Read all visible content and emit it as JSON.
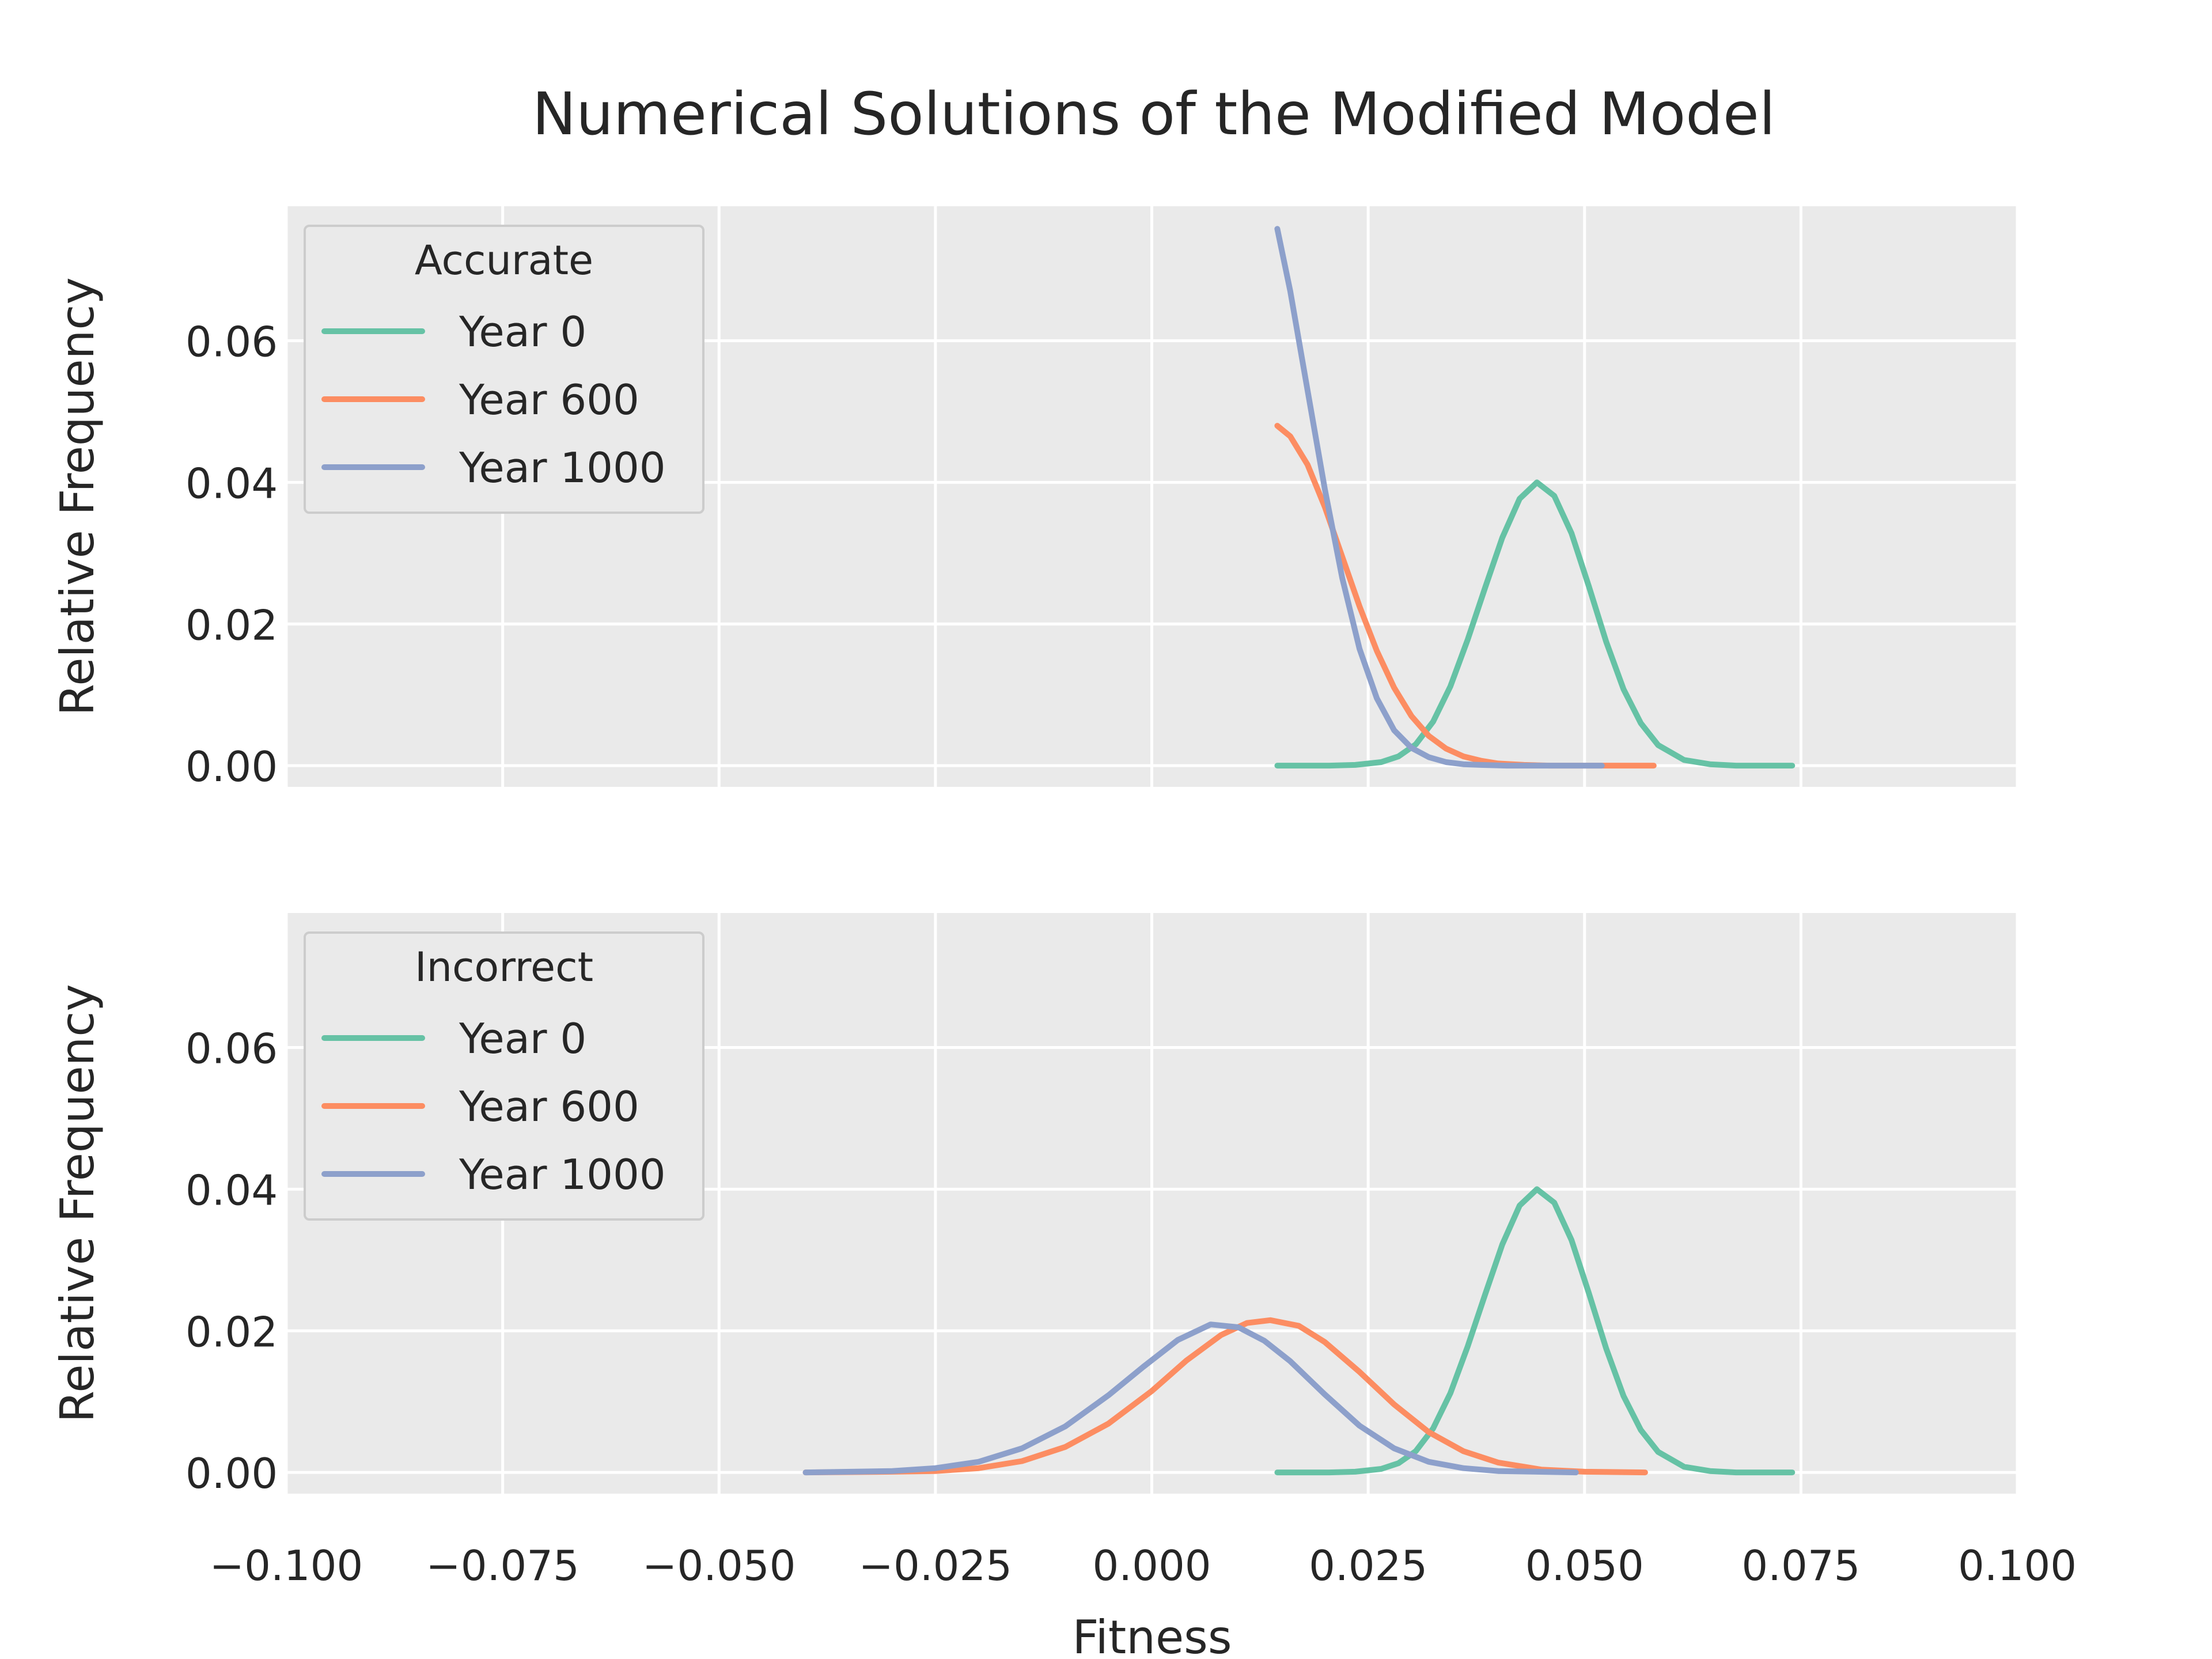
{
  "title": "Numerical Solutions of the Modified Model",
  "colors": {
    "year0": "#66c2a5",
    "year600": "#fc8d62",
    "year1000": "#8da0cb",
    "panel_bg": "#eaeaea",
    "grid": "#ffffff",
    "text": "#262626"
  },
  "chart_data": [
    {
      "type": "line",
      "legend_title": "Accurate",
      "legend_placement": "top-left",
      "xlabel": "",
      "ylabel": "Relative Frequency",
      "xlim": [
        -0.1,
        0.1
      ],
      "ylim": [
        -0.003,
        0.079
      ],
      "yticks": [
        "0.00",
        "0.02",
        "0.04",
        "0.06"
      ],
      "yticks_values": [
        0,
        0.02,
        0.04,
        0.06
      ],
      "grid": true,
      "series": [
        {
          "name": "Year 0",
          "color": "#66c2a5",
          "x": [
            0.0145,
            0.0175,
            0.0205,
            0.0235,
            0.0265,
            0.0285,
            0.0305,
            0.0325,
            0.0345,
            0.0365,
            0.0385,
            0.0405,
            0.0425,
            0.0445,
            0.0465,
            0.0485,
            0.0505,
            0.0525,
            0.0545,
            0.0565,
            0.0585,
            0.0615,
            0.0645,
            0.0675,
            0.0705,
            0.074
          ],
          "y": [
            0.0,
            0.0,
            0.0,
            0.0001,
            0.0005,
            0.0013,
            0.003,
            0.0062,
            0.0112,
            0.0178,
            0.0251,
            0.0322,
            0.0377,
            0.04,
            0.0381,
            0.0328,
            0.0253,
            0.0175,
            0.0108,
            0.006,
            0.0029,
            0.0008,
            0.0002,
            0.0,
            0.0,
            0.0
          ]
        },
        {
          "name": "Year 600",
          "color": "#fc8d62",
          "x": [
            0.0145,
            0.016,
            0.018,
            0.02,
            0.022,
            0.024,
            0.026,
            0.028,
            0.03,
            0.032,
            0.034,
            0.036,
            0.038,
            0.04,
            0.043,
            0.046,
            0.05,
            0.054,
            0.058
          ],
          "y": [
            0.048,
            0.0465,
            0.0425,
            0.0365,
            0.0295,
            0.0225,
            0.0162,
            0.011,
            0.007,
            0.0042,
            0.0024,
            0.0013,
            0.0007,
            0.0003,
            0.0001,
            0.0,
            0.0,
            0.0,
            0.0
          ]
        },
        {
          "name": "Year 1000",
          "color": "#8da0cb",
          "x": [
            0.0145,
            0.016,
            0.018,
            0.02,
            0.022,
            0.024,
            0.026,
            0.028,
            0.03,
            0.032,
            0.034,
            0.036,
            0.038,
            0.041,
            0.044,
            0.048,
            0.052
          ],
          "y": [
            0.0758,
            0.067,
            0.053,
            0.039,
            0.0265,
            0.0165,
            0.0095,
            0.005,
            0.0025,
            0.0012,
            0.0005,
            0.0002,
            0.0001,
            0.0,
            0.0,
            0.0,
            0.0
          ]
        }
      ]
    },
    {
      "type": "line",
      "legend_title": "Incorrect",
      "legend_placement": "top-left",
      "xlabel": "Fitness",
      "ylabel": "Relative Frequency",
      "xlim": [
        -0.1,
        0.1
      ],
      "ylim": [
        -0.003,
        0.079
      ],
      "xticks": [
        "−0.100",
        "−0.075",
        "−0.050",
        "−0.025",
        "0.000",
        "0.025",
        "0.050",
        "0.075",
        "0.100"
      ],
      "xticks_values": [
        -0.1,
        -0.075,
        -0.05,
        -0.025,
        0.0,
        0.025,
        0.05,
        0.075,
        0.1
      ],
      "yticks": [
        "0.00",
        "0.02",
        "0.04",
        "0.06"
      ],
      "yticks_values": [
        0,
        0.02,
        0.04,
        0.06
      ],
      "grid": true,
      "series": [
        {
          "name": "Year 0",
          "color": "#66c2a5",
          "x": [
            0.0145,
            0.0175,
            0.0205,
            0.0235,
            0.0265,
            0.0285,
            0.0305,
            0.0325,
            0.0345,
            0.0365,
            0.0385,
            0.0405,
            0.0425,
            0.0445,
            0.0465,
            0.0485,
            0.0505,
            0.0525,
            0.0545,
            0.0565,
            0.0585,
            0.0615,
            0.0645,
            0.0675,
            0.0705,
            0.074
          ],
          "y": [
            0.0,
            0.0,
            0.0,
            0.0001,
            0.0005,
            0.0013,
            0.003,
            0.0062,
            0.0112,
            0.0178,
            0.0251,
            0.0322,
            0.0377,
            0.04,
            0.0381,
            0.0328,
            0.0253,
            0.0175,
            0.0108,
            0.006,
            0.0029,
            0.0008,
            0.0002,
            0.0,
            0.0,
            0.0
          ]
        },
        {
          "name": "Year 600",
          "color": "#fc8d62",
          "x": [
            -0.04,
            -0.03,
            -0.025,
            -0.02,
            -0.015,
            -0.01,
            -0.005,
            0.0,
            0.004,
            0.008,
            0.011,
            0.0137,
            0.017,
            0.02,
            0.024,
            0.028,
            0.032,
            0.036,
            0.04,
            0.045,
            0.05,
            0.057
          ],
          "y": [
            0.0,
            0.0001,
            0.0002,
            0.0006,
            0.0016,
            0.0036,
            0.0069,
            0.0115,
            0.0158,
            0.0194,
            0.0211,
            0.0215,
            0.0207,
            0.0184,
            0.0142,
            0.0096,
            0.0057,
            0.003,
            0.0014,
            0.0004,
            0.0001,
            0.0
          ]
        },
        {
          "name": "Year 1000",
          "color": "#8da0cb",
          "x": [
            -0.04,
            -0.03,
            -0.025,
            -0.02,
            -0.015,
            -0.01,
            -0.005,
            -0.001,
            0.003,
            0.0068,
            0.01,
            0.013,
            0.016,
            0.02,
            0.024,
            0.028,
            0.032,
            0.036,
            0.04,
            0.049
          ],
          "y": [
            0.0,
            0.0002,
            0.0006,
            0.0015,
            0.0034,
            0.0065,
            0.0109,
            0.0149,
            0.0187,
            0.0209,
            0.0205,
            0.0186,
            0.0157,
            0.011,
            0.0066,
            0.0034,
            0.0015,
            0.0006,
            0.0002,
            0.0
          ]
        }
      ]
    }
  ]
}
